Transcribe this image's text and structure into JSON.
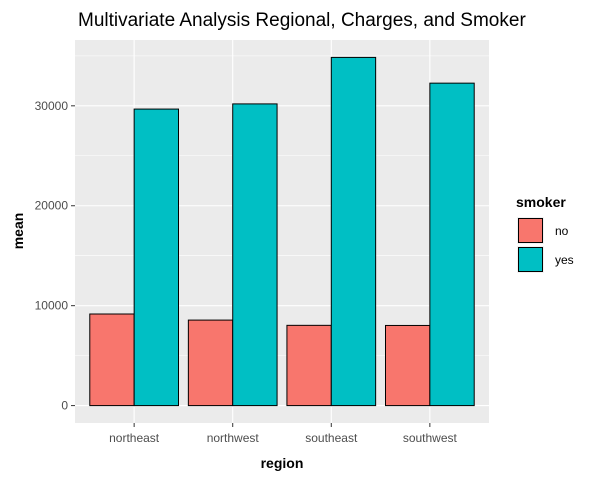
{
  "chart_data": {
    "type": "bar",
    "title": "Multivariate Analysis Regional, Charges, and Smoker",
    "xlabel": "region",
    "ylabel": "mean",
    "categories": [
      "northeast",
      "northwest",
      "southeast",
      "southwest"
    ],
    "series": [
      {
        "name": "no",
        "values": [
          9166,
          8557,
          8032,
          8020
        ],
        "color": "#F8766D"
      },
      {
        "name": "yes",
        "values": [
          29674,
          30192,
          34845,
          32269
        ],
        "color": "#00BFC4"
      }
    ],
    "yticks": [
      0,
      10000,
      20000,
      30000
    ],
    "ytick_labels": [
      "0",
      "10000",
      "20000",
      "30000"
    ],
    "ylim": [
      -1742,
      36587
    ],
    "legend": {
      "title": "smoker",
      "position": "right"
    },
    "grid": true,
    "panel_background": "#EBEBEB",
    "bar_outline": "#000000"
  }
}
